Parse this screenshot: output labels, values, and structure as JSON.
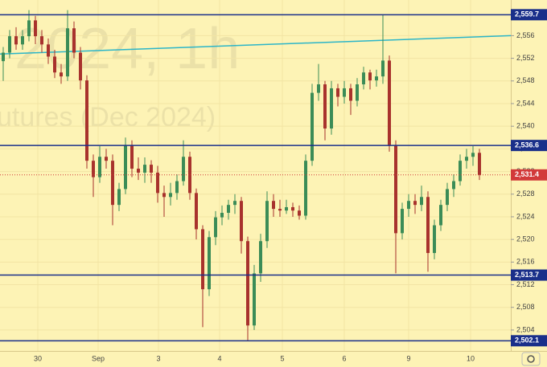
{
  "chart_data": {
    "type": "candlestick",
    "watermark": [
      "2024, 1h",
      "utures (Dec 2024)"
    ],
    "up_color": "#3b8c57",
    "down_color": "#a8322d",
    "ylim": [
      2500.3,
      2562.3
    ],
    "xlim": [
      -0.5,
      78.875
    ],
    "yticks": [
      {
        "value": 2504,
        "label": "2,504"
      },
      {
        "value": 2508,
        "label": "2,508"
      },
      {
        "value": 2512,
        "label": "2,512"
      },
      {
        "value": 2516,
        "label": "2,516"
      },
      {
        "value": 2520,
        "label": "2,520"
      },
      {
        "value": 2524,
        "label": "2,524"
      },
      {
        "value": 2528,
        "label": "2,528"
      },
      {
        "value": 2532,
        "label": "2,532"
      },
      {
        "value": 2536,
        "label": "2,536"
      },
      {
        "value": 2540,
        "label": "2,540"
      },
      {
        "value": 2544,
        "label": "2,544"
      },
      {
        "value": 2548,
        "label": "2,548"
      },
      {
        "value": 2552,
        "label": "2,552"
      },
      {
        "value": 2556,
        "label": "2,556"
      }
    ],
    "xticks": [
      {
        "value": 5.375,
        "label": "30"
      },
      {
        "value": 14.75,
        "label": "Sep"
      },
      {
        "value": 24.125,
        "label": "3"
      },
      {
        "value": 33.625,
        "label": "4"
      },
      {
        "value": 43.375,
        "label": "5"
      },
      {
        "value": 53,
        "label": "6"
      },
      {
        "value": 63,
        "label": "9"
      },
      {
        "value": 72.625,
        "label": "10"
      }
    ],
    "levels": [
      {
        "value": 2559.7,
        "label": "2,559.7",
        "color": "#1a2f8a"
      },
      {
        "value": 2536.6,
        "label": "2,536.6",
        "color": "#1a2f8a"
      },
      {
        "value": 2513.7,
        "label": "2,513.7",
        "color": "#1a2f8a"
      },
      {
        "value": 2502.1,
        "label": "2,502.1",
        "color": "#1a2f8a"
      }
    ],
    "last_price": {
      "value": 2531.4,
      "label": "2,531.4",
      "color": "#d23a3a"
    },
    "trendline": {
      "points": [
        [
          -0.5,
          2552.75
        ],
        [
          78.875,
          2556.0
        ]
      ],
      "color": "#2bb5c8"
    },
    "ohlc": [
      [
        2551.5,
        2554.0,
        2548.0,
        2553.0
      ],
      [
        2553.0,
        2557.0,
        2552.0,
        2555.9
      ],
      [
        2555.9,
        2557.5,
        2553.5,
        2554.45
      ],
      [
        2554.45,
        2557.0,
        2553.5,
        2555.9
      ],
      [
        2555.9,
        2560.5,
        2555.0,
        2558.7
      ],
      [
        2558.7,
        2559.5,
        2554.5,
        2555.9
      ],
      [
        2555.9,
        2557.0,
        2553.0,
        2554.45
      ],
      [
        2554.45,
        2555.5,
        2551.0,
        2552.3
      ],
      [
        2552.3,
        2553.5,
        2548.5,
        2549.5
      ],
      [
        2549.5,
        2551.0,
        2547.5,
        2548.8
      ],
      [
        2548.8,
        2560.5,
        2548.0,
        2557.3
      ],
      [
        2557.3,
        2558.5,
        2552.0,
        2553.0
      ],
      [
        2553.0,
        2554.0,
        2546.5,
        2548.1
      ],
      [
        2548.1,
        2549.0,
        2532.5,
        2533.9
      ],
      [
        2533.9,
        2535.0,
        2527.5,
        2531.0
      ],
      [
        2531.0,
        2536.5,
        2530.0,
        2534.6
      ],
      [
        2534.6,
        2536.0,
        2532.5,
        2533.9
      ],
      [
        2533.9,
        2535.0,
        2522.5,
        2526.1
      ],
      [
        2526.1,
        2530.0,
        2525.0,
        2528.9
      ],
      [
        2528.9,
        2538.0,
        2528.0,
        2536.7
      ],
      [
        2536.7,
        2537.5,
        2531.0,
        2532.5
      ],
      [
        2532.5,
        2534.5,
        2530.5,
        2531.8
      ],
      [
        2531.8,
        2534.5,
        2530.0,
        2533.2
      ],
      [
        2533.2,
        2534.0,
        2530.0,
        2531.8
      ],
      [
        2531.8,
        2533.0,
        2526.5,
        2528.2
      ],
      [
        2528.2,
        2529.5,
        2524.0,
        2527.5
      ],
      [
        2527.5,
        2530.0,
        2526.0,
        2528.2
      ],
      [
        2528.2,
        2531.5,
        2527.0,
        2530.3
      ],
      [
        2530.3,
        2537.5,
        2529.5,
        2534.6
      ],
      [
        2534.6,
        2535.5,
        2527.0,
        2528.2
      ],
      [
        2528.2,
        2529.0,
        2520.0,
        2521.8
      ],
      [
        2521.8,
        2522.5,
        2504.5,
        2511.2
      ],
      [
        2511.2,
        2521.5,
        2510.0,
        2520.4
      ],
      [
        2520.4,
        2525.0,
        2519.0,
        2523.9
      ],
      [
        2523.9,
        2526.0,
        2522.5,
        2524.7
      ],
      [
        2524.7,
        2527.0,
        2523.5,
        2526.1
      ],
      [
        2526.1,
        2528.0,
        2524.5,
        2526.8
      ],
      [
        2526.8,
        2527.5,
        2517.5,
        2519.7
      ],
      [
        2519.7,
        2520.5,
        2502.1,
        2504.8
      ],
      [
        2504.8,
        2515.5,
        2504.0,
        2514.0
      ],
      [
        2514.0,
        2521.0,
        2512.5,
        2519.7
      ],
      [
        2519.7,
        2528.5,
        2518.5,
        2526.8
      ],
      [
        2526.8,
        2528.0,
        2524.0,
        2525.4
      ],
      [
        2525.4,
        2527.0,
        2524.0,
        2525.1
      ],
      [
        2525.1,
        2527.0,
        2524.5,
        2525.7
      ],
      [
        2525.7,
        2526.5,
        2524.0,
        2525.1
      ],
      [
        2525.1,
        2526.0,
        2523.5,
        2524.2
      ],
      [
        2524.2,
        2535.0,
        2523.5,
        2533.9
      ],
      [
        2533.9,
        2547.5,
        2533.0,
        2545.9
      ],
      [
        2545.9,
        2551.0,
        2544.5,
        2547.4
      ],
      [
        2547.4,
        2548.0,
        2537.5,
        2539.6
      ],
      [
        2539.6,
        2548.0,
        2538.5,
        2546.7
      ],
      [
        2546.7,
        2547.5,
        2543.5,
        2545.2
      ],
      [
        2545.2,
        2548.0,
        2544.0,
        2546.7
      ],
      [
        2546.7,
        2547.5,
        2542.0,
        2544.5
      ],
      [
        2544.5,
        2548.5,
        2543.5,
        2547.4
      ],
      [
        2547.4,
        2550.5,
        2546.5,
        2549.5
      ],
      [
        2549.5,
        2550.0,
        2546.5,
        2548.1
      ],
      [
        2548.1,
        2550.0,
        2547.0,
        2548.8
      ],
      [
        2548.8,
        2559.7,
        2547.5,
        2551.6
      ],
      [
        2551.6,
        2552.5,
        2535.5,
        2536.7
      ],
      [
        2536.7,
        2537.5,
        2514.0,
        2521.1
      ],
      [
        2521.1,
        2526.5,
        2520.0,
        2525.4
      ],
      [
        2525.4,
        2528.0,
        2524.0,
        2526.8
      ],
      [
        2526.8,
        2528.0,
        2524.5,
        2526.1
      ],
      [
        2526.1,
        2529.5,
        2525.0,
        2527.5
      ],
      [
        2527.5,
        2528.5,
        2514.3,
        2517.6
      ],
      [
        2517.6,
        2523.5,
        2516.5,
        2522.5
      ],
      [
        2522.5,
        2527.0,
        2521.5,
        2526.1
      ],
      [
        2526.1,
        2530.0,
        2525.0,
        2528.9
      ],
      [
        2528.9,
        2531.5,
        2527.5,
        2530.3
      ],
      [
        2530.3,
        2535.0,
        2529.5,
        2533.9
      ],
      [
        2533.9,
        2536.0,
        2532.5,
        2534.6
      ],
      [
        2534.6,
        2536.5,
        2533.0,
        2535.3
      ],
      [
        2535.3,
        2536.0,
        2530.5,
        2531.4
      ]
    ]
  }
}
